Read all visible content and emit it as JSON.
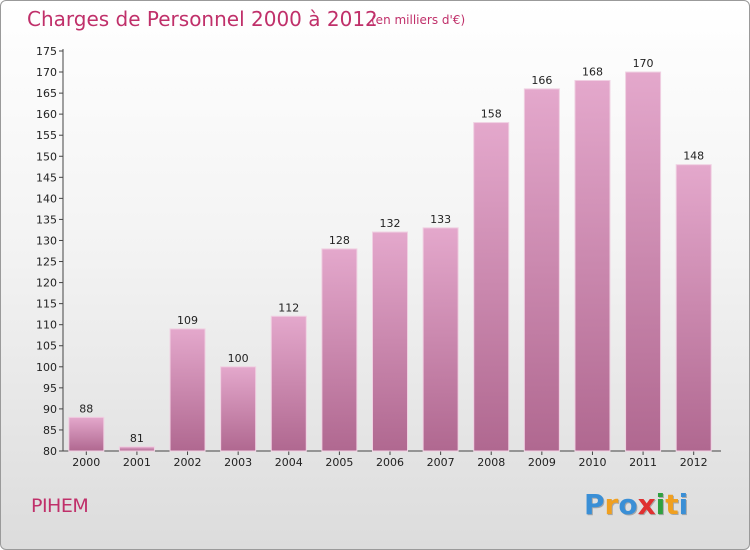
{
  "header": {
    "title": "Charges de Personnel 2000 à 2012",
    "subtitle": "(en milliers d'€)"
  },
  "footer": {
    "commune": "PIHEM",
    "logo_letters": [
      "P",
      "r",
      "o",
      "x",
      "i",
      "t",
      "i"
    ],
    "logo_colors": [
      "#3a8fd6",
      "#f0a020",
      "#3a8fd6",
      "#e03030",
      "#30a040",
      "#f0a020",
      "#3a8fd6"
    ]
  },
  "colors": {
    "bar_top": "#e4a8cc",
    "bar_bottom": "#b06890",
    "accent": "#c0306a"
  },
  "chart_data": {
    "type": "bar",
    "title": "Charges de Personnel 2000 à 2012",
    "subtitle": "(en milliers d'€)",
    "categories": [
      "2000",
      "2001",
      "2002",
      "2003",
      "2004",
      "2005",
      "2006",
      "2007",
      "2008",
      "2009",
      "2010",
      "2011",
      "2012"
    ],
    "values": [
      88,
      81,
      109,
      100,
      112,
      128,
      132,
      133,
      158,
      166,
      168,
      170,
      148
    ],
    "ylim": [
      80,
      175
    ],
    "yticks": [
      80,
      85,
      90,
      95,
      100,
      105,
      110,
      115,
      120,
      125,
      130,
      135,
      140,
      145,
      150,
      155,
      160,
      165,
      170,
      175
    ],
    "grid": false,
    "xlabel": "",
    "ylabel": ""
  }
}
